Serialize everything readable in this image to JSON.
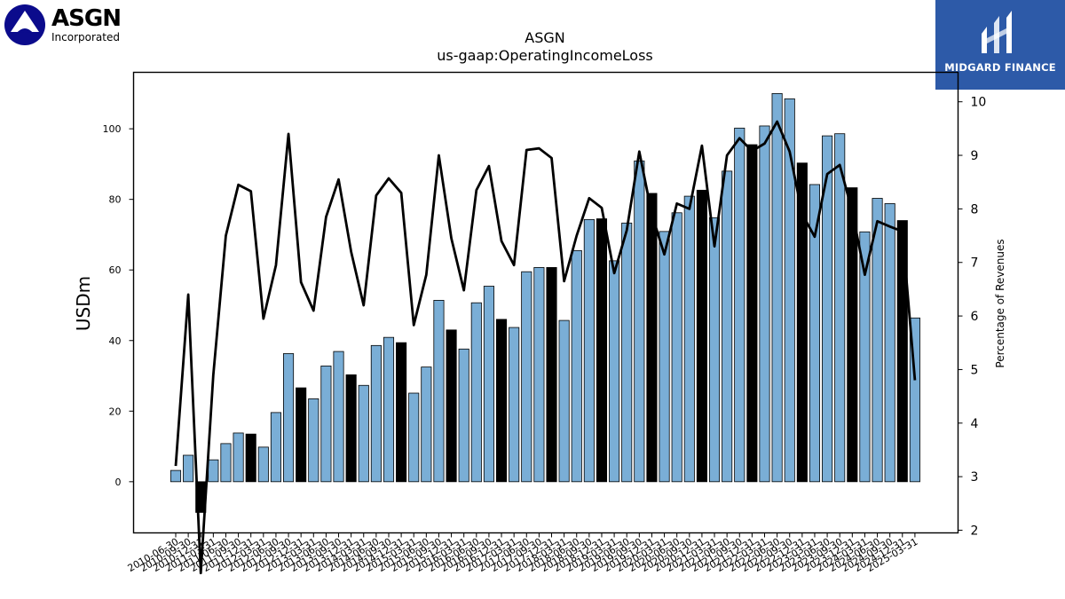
{
  "brand_left": {
    "name": "ASGN",
    "subtitle": "Incorporated",
    "color": "#0b0b8c"
  },
  "brand_right": {
    "name": "MIDGARD FINANCE",
    "color": "#2d5aa8"
  },
  "chart_data": {
    "type": "bar",
    "title": "ASGN",
    "subtitle": "us-gaap:OperatingIncomeLoss",
    "ylabel": "USDm",
    "y2label": "Percentage of Revenues",
    "ylim": [
      -14.5,
      116
    ],
    "y2lim": [
      1.95,
      10.55
    ],
    "yticks": [
      0,
      20,
      40,
      60,
      80,
      100
    ],
    "y2ticks": [
      2,
      3,
      4,
      5,
      6,
      7,
      8,
      9,
      10
    ],
    "bar_colors": {
      "quarter": "#7aaed6",
      "fiscal_year": "#000000"
    },
    "line_color": "#000000",
    "categories": [
      "2010-06-30",
      "2010-09-30",
      "2010-12-31",
      "2011-03-31",
      "2011-06-30",
      "2011-09-30",
      "2011-12-31",
      "2012-03-31",
      "2012-06-30",
      "2012-09-30",
      "2012-12-31",
      "2013-03-31",
      "2013-06-30",
      "2013-09-30",
      "2013-12-31",
      "2014-03-31",
      "2014-06-30",
      "2014-09-30",
      "2014-12-31",
      "2015-03-31",
      "2015-06-30",
      "2015-09-30",
      "2015-12-31",
      "2016-03-31",
      "2016-06-30",
      "2016-09-30",
      "2016-12-31",
      "2017-03-31",
      "2017-06-30",
      "2017-09-30",
      "2017-12-31",
      "2018-03-31",
      "2018-06-30",
      "2018-09-30",
      "2018-12-31",
      "2019-03-31",
      "2019-06-30",
      "2019-09-30",
      "2019-12-31",
      "2020-03-31",
      "2020-06-30",
      "2020-09-30",
      "2020-12-31",
      "2021-03-31",
      "2021-06-30",
      "2021-09-30",
      "2021-12-31",
      "2022-03-31",
      "2022-06-30",
      "2022-09-30",
      "2022-12-31",
      "2023-03-31",
      "2023-06-30",
      "2023-09-30",
      "2023-12-31",
      "2024-03-31",
      "2024-06-30",
      "2024-09-30",
      "2024-12-31",
      "2025-03-31"
    ],
    "values": [
      3.2,
      7.5,
      -8.7,
      6.2,
      10.8,
      13.8,
      13.5,
      9.8,
      19.6,
      36.3,
      26.6,
      23.5,
      32.8,
      36.9,
      30.3,
      27.3,
      38.6,
      40.9,
      39.4,
      25.1,
      32.5,
      51.4,
      43.0,
      37.6,
      50.7,
      55.4,
      46.0,
      43.7,
      59.5,
      60.7,
      60.7,
      45.7,
      65.5,
      74.3,
      74.5,
      62.6,
      73.3,
      90.9,
      81.7,
      70.9,
      76.2,
      80.9,
      82.6,
      74.8,
      88.0,
      100.2,
      95.5,
      100.8,
      110.0,
      108.5,
      90.3,
      84.2,
      98.0,
      98.6,
      83.3,
      70.8,
      80.3,
      78.8,
      74.0,
      46.4
    ],
    "fiscal_year_flags": [
      0,
      0,
      1,
      0,
      0,
      0,
      1,
      0,
      0,
      0,
      1,
      0,
      0,
      0,
      1,
      0,
      0,
      0,
      1,
      0,
      0,
      0,
      1,
      0,
      0,
      0,
      1,
      0,
      0,
      0,
      1,
      0,
      0,
      0,
      1,
      0,
      0,
      0,
      1,
      0,
      0,
      0,
      1,
      0,
      0,
      0,
      1,
      0,
      0,
      0,
      1,
      0,
      0,
      0,
      1,
      0,
      0,
      0,
      1,
      0
    ],
    "pct_of_revenues": [
      3.2,
      6.4,
      1.2,
      4.9,
      7.5,
      8.45,
      8.33,
      5.95,
      6.95,
      9.4,
      6.63,
      6.1,
      7.85,
      8.55,
      7.2,
      6.2,
      8.25,
      8.57,
      8.3,
      5.83,
      6.77,
      9.0,
      7.45,
      6.48,
      8.35,
      8.8,
      7.4,
      6.95,
      9.1,
      9.13,
      8.95,
      6.65,
      7.5,
      8.2,
      8.02,
      6.8,
      7.6,
      9.07,
      7.9,
      7.15,
      8.1,
      8.0,
      9.18,
      7.3,
      9.0,
      9.32,
      9.08,
      9.22,
      9.63,
      9.07,
      7.9,
      7.48,
      8.65,
      8.82,
      7.95,
      6.77,
      7.77,
      7.67,
      7.58,
      4.8
    ]
  }
}
